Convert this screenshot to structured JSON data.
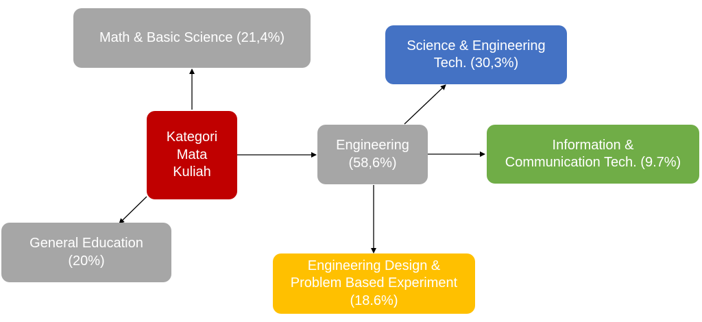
{
  "nodes": {
    "center": {
      "lines": [
        "Kategori",
        "Mata",
        "Kuliah"
      ]
    },
    "math": {
      "lines": [
        "Math & Basic Science (21,4%)"
      ]
    },
    "general": {
      "lines": [
        "General Education",
        "(20%)"
      ]
    },
    "engineering": {
      "lines": [
        "Engineering",
        "(58,6%)"
      ]
    },
    "science_tech": {
      "lines": [
        "Science & Engineering",
        "Tech. (30,3%)"
      ]
    },
    "ict": {
      "lines": [
        "Information &",
        "Communication Tech. (9.7%)"
      ]
    },
    "design": {
      "lines": [
        "Engineering Design &",
        "Problem Based Experiment",
        "(18.6%)"
      ]
    }
  },
  "colors": {
    "gray": "#a6a6a6",
    "red": "#c00000",
    "blue": "#4472c4",
    "green": "#70ad47",
    "gold": "#ffc000",
    "arrow": "#000000"
  }
}
